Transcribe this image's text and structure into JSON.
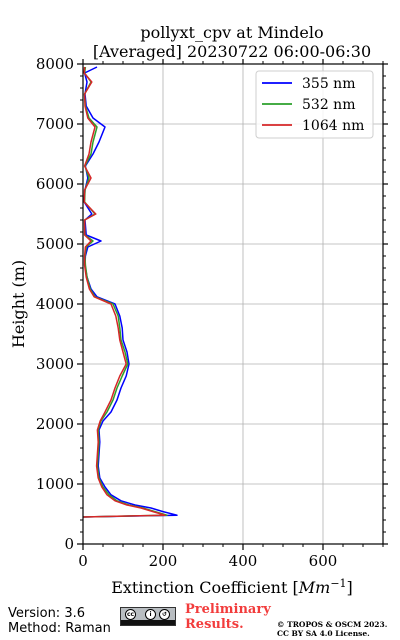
{
  "chart_data": {
    "type": "line",
    "title_line1": "pollyxt_cpv at Mindelo",
    "title_line2": "[Averaged] 20230722 06:00-06:30",
    "xlabel_prefix": "Extinction Coefficient [",
    "xlabel_unit": "Mm",
    "xlabel_exp": "−1",
    "xlabel_suffix": "]",
    "ylabel": "Height (m)",
    "xlim": [
      0,
      750
    ],
    "ylim": [
      0,
      8000
    ],
    "xticks": [
      0,
      200,
      400,
      600
    ],
    "yticks": [
      0,
      1000,
      2000,
      3000,
      4000,
      5000,
      6000,
      7000,
      8000
    ],
    "grid": true,
    "legend_position": "top-right",
    "series": [
      {
        "name": "355 nm",
        "color": "#0000ff",
        "points": [
          [
            0,
            450
          ],
          [
            235,
            480
          ],
          [
            200,
            540
          ],
          [
            170,
            600
          ],
          [
            130,
            650
          ],
          [
            95,
            720
          ],
          [
            70,
            820
          ],
          [
            55,
            950
          ],
          [
            42,
            1100
          ],
          [
            38,
            1300
          ],
          [
            40,
            1500
          ],
          [
            42,
            1700
          ],
          [
            40,
            1900
          ],
          [
            50,
            2050
          ],
          [
            70,
            2200
          ],
          [
            85,
            2400
          ],
          [
            95,
            2600
          ],
          [
            108,
            2800
          ],
          [
            115,
            3000
          ],
          [
            110,
            3200
          ],
          [
            100,
            3400
          ],
          [
            98,
            3600
          ],
          [
            92,
            3800
          ],
          [
            80,
            4000
          ],
          [
            35,
            4120
          ],
          [
            20,
            4250
          ],
          [
            10,
            4450
          ],
          [
            5,
            4650
          ],
          [
            6,
            4800
          ],
          [
            12,
            4950
          ],
          [
            45,
            5050
          ],
          [
            8,
            5150
          ],
          [
            5,
            5400
          ],
          [
            22,
            5500
          ],
          [
            3,
            5700
          ],
          [
            5,
            5900
          ],
          [
            12,
            6100
          ],
          [
            6,
            6300
          ],
          [
            25,
            6500
          ],
          [
            40,
            6700
          ],
          [
            55,
            6950
          ],
          [
            25,
            7100
          ],
          [
            8,
            7300
          ],
          [
            5,
            7500
          ],
          [
            10,
            7700
          ],
          [
            4,
            7850
          ],
          [
            35,
            7950
          ]
        ]
      },
      {
        "name": "532 nm",
        "color": "#2ca02c",
        "points": [
          [
            0,
            450
          ],
          [
            210,
            480
          ],
          [
            180,
            540
          ],
          [
            150,
            600
          ],
          [
            115,
            650
          ],
          [
            85,
            720
          ],
          [
            65,
            820
          ],
          [
            50,
            950
          ],
          [
            40,
            1100
          ],
          [
            36,
            1300
          ],
          [
            38,
            1500
          ],
          [
            40,
            1700
          ],
          [
            38,
            1900
          ],
          [
            45,
            2050
          ],
          [
            60,
            2200
          ],
          [
            75,
            2400
          ],
          [
            85,
            2600
          ],
          [
            98,
            2800
          ],
          [
            112,
            3000
          ],
          [
            105,
            3200
          ],
          [
            95,
            3400
          ],
          [
            92,
            3600
          ],
          [
            88,
            3800
          ],
          [
            75,
            4000
          ],
          [
            30,
            4120
          ],
          [
            18,
            4250
          ],
          [
            10,
            4450
          ],
          [
            6,
            4650
          ],
          [
            5,
            4800
          ],
          [
            8,
            4950
          ],
          [
            25,
            5050
          ],
          [
            5,
            5150
          ],
          [
            4,
            5400
          ],
          [
            30,
            5500
          ],
          [
            4,
            5700
          ],
          [
            5,
            5900
          ],
          [
            15,
            6100
          ],
          [
            5,
            6300
          ],
          [
            20,
            6500
          ],
          [
            25,
            6700
          ],
          [
            35,
            6950
          ],
          [
            15,
            7100
          ],
          [
            6,
            7300
          ],
          [
            4,
            7500
          ],
          [
            20,
            7700
          ],
          [
            4,
            7850
          ],
          [
            6,
            7950
          ]
        ]
      },
      {
        "name": "1064 nm",
        "color": "#d62728",
        "points": [
          [
            0,
            450
          ],
          [
            205,
            480
          ],
          [
            175,
            540
          ],
          [
            145,
            600
          ],
          [
            110,
            650
          ],
          [
            80,
            720
          ],
          [
            60,
            820
          ],
          [
            47,
            950
          ],
          [
            38,
            1100
          ],
          [
            34,
            1300
          ],
          [
            36,
            1500
          ],
          [
            38,
            1700
          ],
          [
            36,
            1900
          ],
          [
            43,
            2050
          ],
          [
            55,
            2200
          ],
          [
            70,
            2400
          ],
          [
            80,
            2600
          ],
          [
            92,
            2800
          ],
          [
            108,
            3000
          ],
          [
            100,
            3200
          ],
          [
            92,
            3400
          ],
          [
            88,
            3600
          ],
          [
            82,
            3800
          ],
          [
            70,
            4000
          ],
          [
            28,
            4120
          ],
          [
            16,
            4250
          ],
          [
            8,
            4450
          ],
          [
            4,
            4650
          ],
          [
            4,
            4800
          ],
          [
            6,
            4950
          ],
          [
            20,
            5050
          ],
          [
            4,
            5150
          ],
          [
            4,
            5400
          ],
          [
            32,
            5500
          ],
          [
            3,
            5700
          ],
          [
            4,
            5900
          ],
          [
            20,
            6100
          ],
          [
            4,
            6300
          ],
          [
            15,
            6500
          ],
          [
            20,
            6700
          ],
          [
            30,
            6950
          ],
          [
            12,
            7100
          ],
          [
            5,
            7300
          ],
          [
            4,
            7500
          ],
          [
            22,
            7700
          ],
          [
            3,
            7850
          ],
          [
            4,
            7950
          ]
        ]
      }
    ]
  },
  "footer": {
    "version": "Version: 3.6",
    "method": "Method: Raman",
    "preliminary": "Preliminary Results.",
    "copyright_line1": "© TROPOS & OSCM 2023.",
    "copyright_line2": "CC BY SA 4.0 License."
  }
}
